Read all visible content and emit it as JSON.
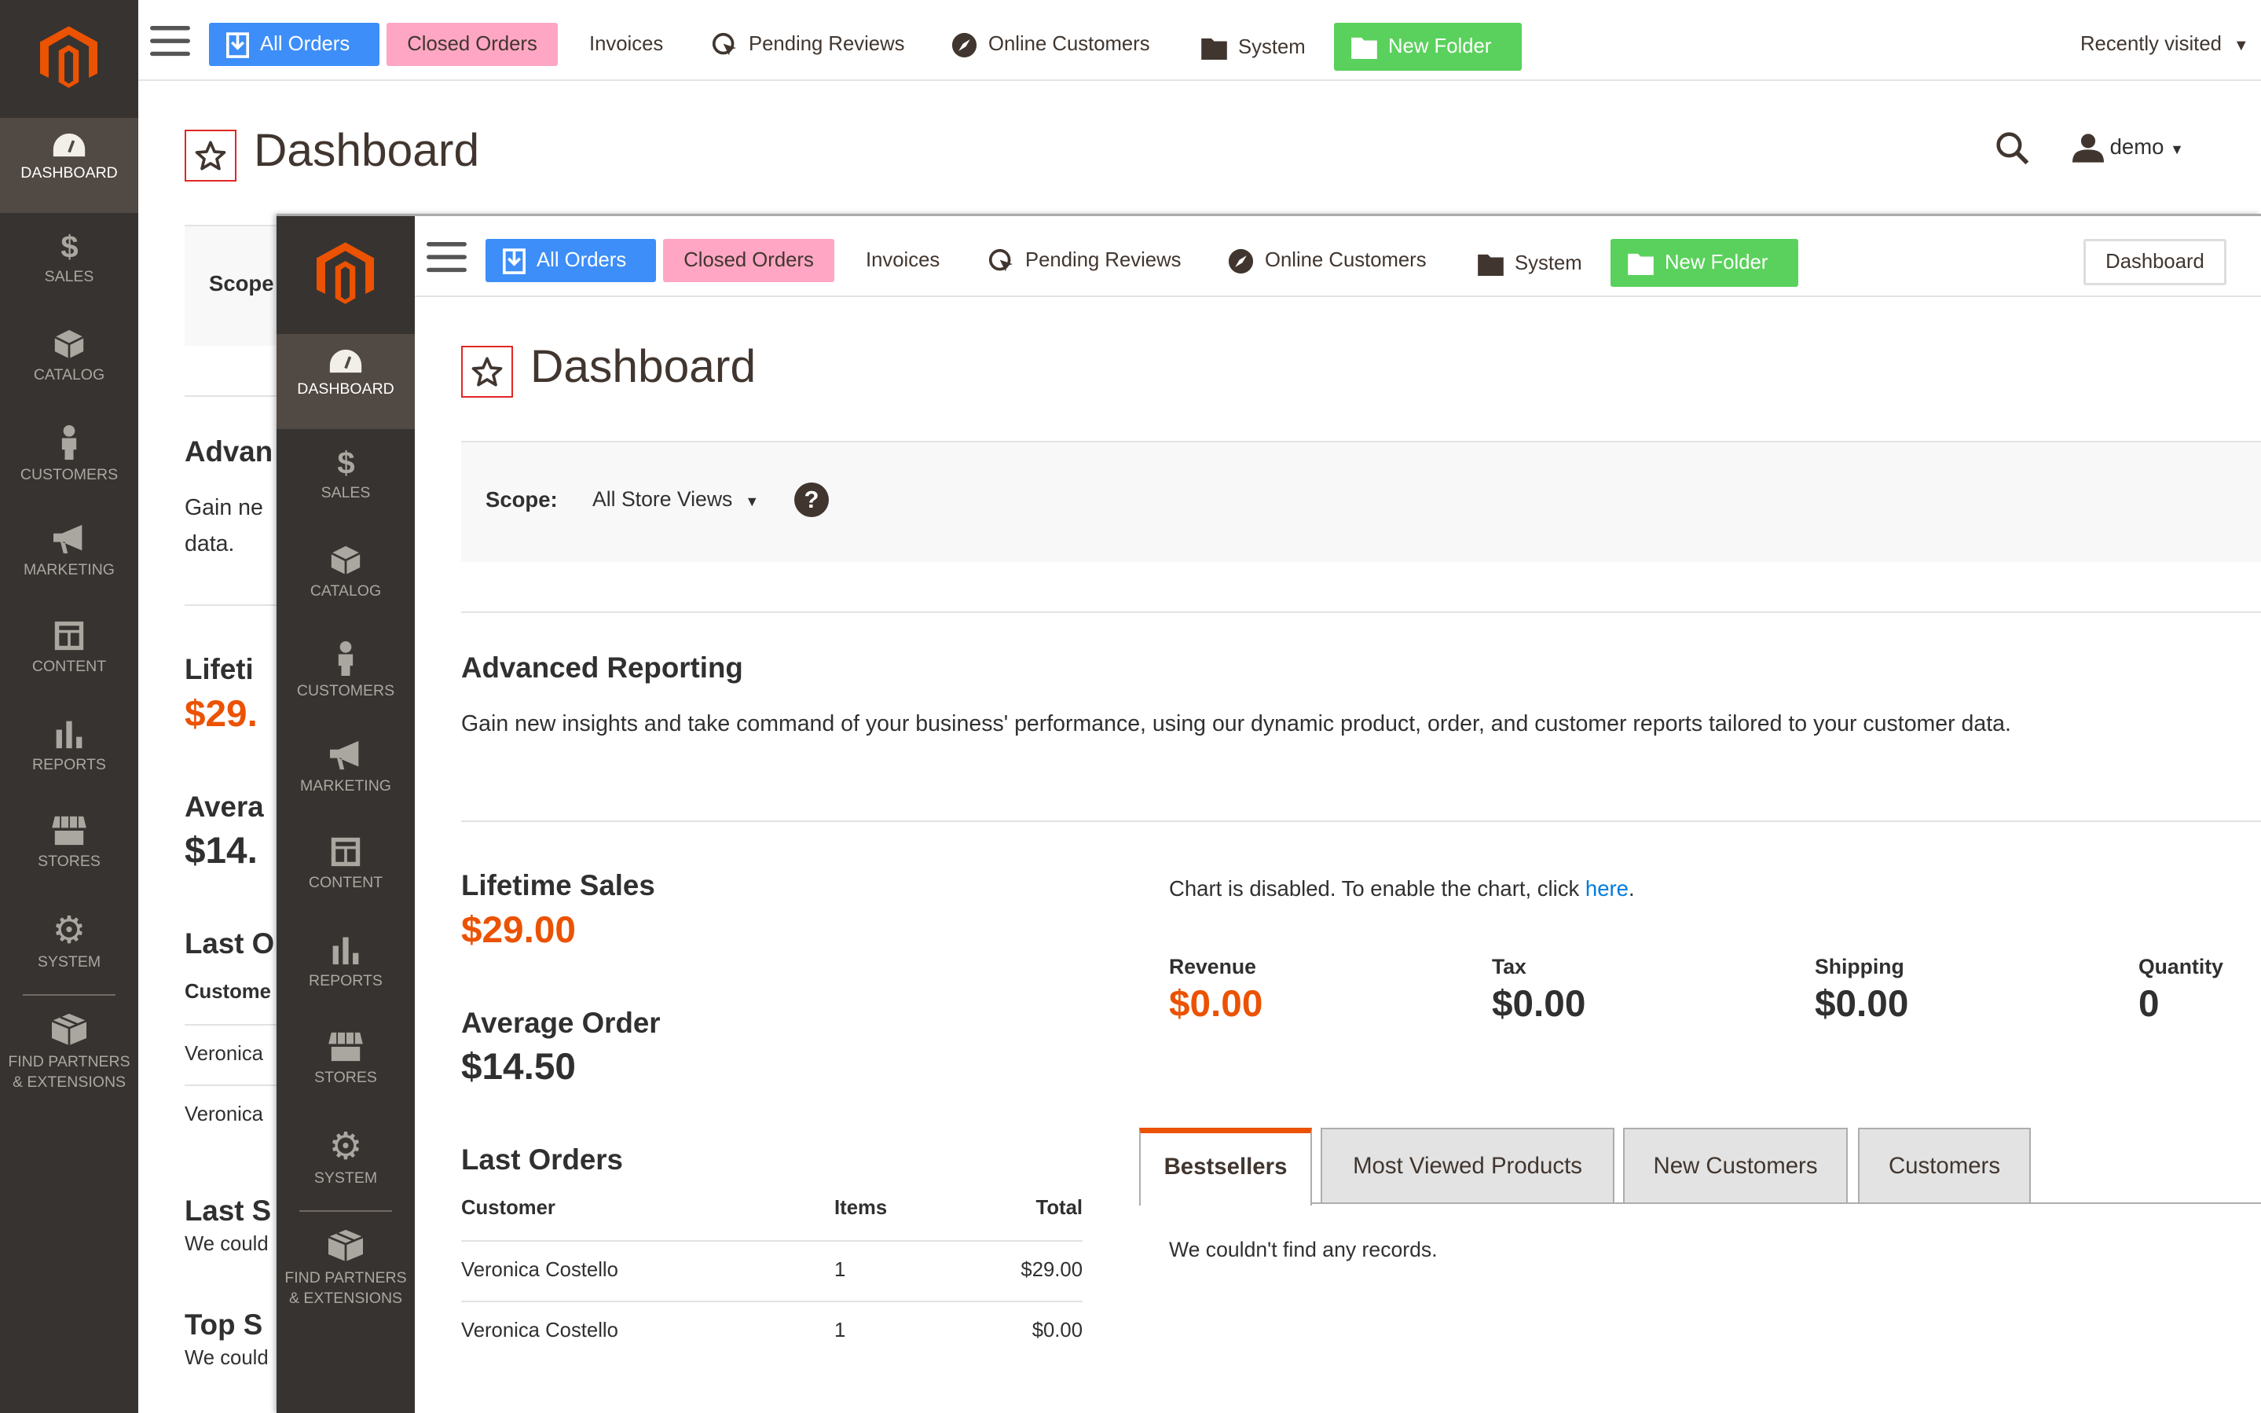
{
  "colors": {
    "sidebar": "#373330",
    "accent": "#eb5202",
    "all_orders": "#3d8ef8",
    "closed_orders": "#ffa6c4",
    "new_folder": "#5ad15c",
    "link": "#007bdb"
  },
  "sidebar": {
    "items": [
      {
        "label": "DASHBOARD",
        "icon": "dashboard-gauge-icon"
      },
      {
        "label": "SALES",
        "icon": "dollar-icon"
      },
      {
        "label": "CATALOG",
        "icon": "cube-icon"
      },
      {
        "label": "CUSTOMERS",
        "icon": "person-icon"
      },
      {
        "label": "MARKETING",
        "icon": "megaphone-icon"
      },
      {
        "label": "CONTENT",
        "icon": "layout-icon"
      },
      {
        "label": "REPORTS",
        "icon": "bar-chart-icon"
      },
      {
        "label": "STORES",
        "icon": "store-icon"
      },
      {
        "label": "SYSTEM",
        "icon": "gear-icon"
      }
    ],
    "partners_1": "FIND PARTNERS",
    "partners_2": "& EXTENSIONS"
  },
  "toolbar": {
    "all_orders": "All Orders",
    "closed_orders": "Closed Orders",
    "invoices": "Invoices",
    "pending_reviews": "Pending Reviews",
    "online_customers": "Online Customers",
    "system": "System",
    "new_folder": "New Folder",
    "dashboard": "Dashboard",
    "recently_visited": "Recently visited"
  },
  "header": {
    "title": "Dashboard",
    "user": "demo"
  },
  "scope": {
    "label": "Scope:",
    "value": "All Store Views"
  },
  "advanced": {
    "title": "Advanced Reporting",
    "text": "Gain new insights and take command of your business' performance, using our dynamic product, order, and customer reports tailored to your customer data."
  },
  "lifetime": {
    "label": "Lifetime Sales",
    "value": "$29.00"
  },
  "average": {
    "label": "Average Order",
    "value": "$14.50"
  },
  "last_orders": {
    "title": "Last Orders",
    "headers": [
      "Customer",
      "Items",
      "Total"
    ],
    "rows": [
      [
        "Veronica Costello",
        "1",
        "$29.00"
      ],
      [
        "Veronica Costello",
        "1",
        "$0.00"
      ]
    ]
  },
  "back_fragments": {
    "last_search": "Last Se",
    "top_search": "Top Se",
    "no_records": "We could"
  },
  "chart": {
    "text": "Chart is disabled. To enable the chart, click ",
    "link": "here",
    "period": "."
  },
  "totals": [
    {
      "label": "Revenue",
      "value": "$0.00"
    },
    {
      "label": "Tax",
      "value": "$0.00"
    },
    {
      "label": "Shipping",
      "value": "$0.00"
    },
    {
      "label": "Quantity",
      "value": "0"
    }
  ],
  "tabs": [
    "Bestsellers",
    "Most Viewed Products",
    "New Customers",
    "Customers"
  ],
  "tab_content": "We couldn't find any records."
}
